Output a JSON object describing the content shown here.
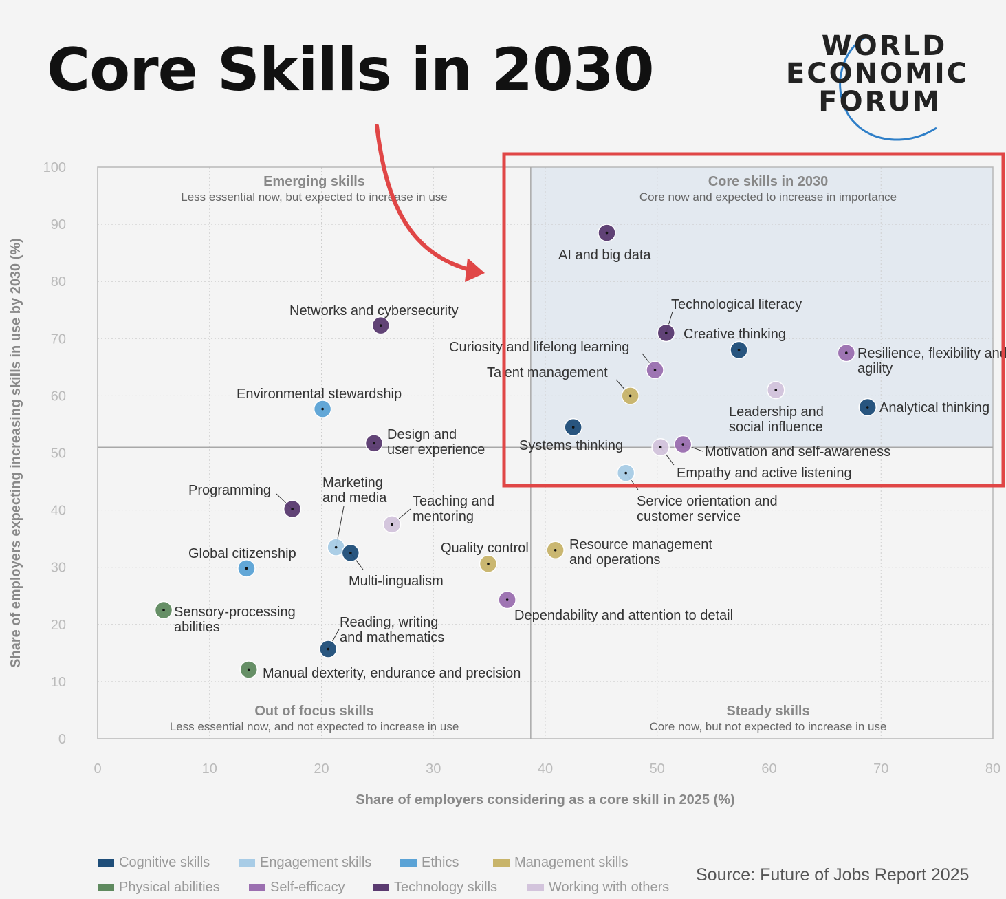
{
  "title": "Core Skills in 2030",
  "logo": {
    "lines": [
      "WORLD",
      "ECONOMIC",
      "FORUM"
    ],
    "colors": {
      "text": "#222222",
      "arc": "#2f7fc8"
    }
  },
  "source": "Source: Future of Jobs Report 2025",
  "colors": {
    "cognitive": "#1f4e79",
    "engagement": "#a8cce6",
    "ethics": "#5ba3d6",
    "management": "#c8b46a",
    "physical": "#5f8a5f",
    "self_efficacy": "#9b6fb0",
    "technology": "#5a3a70",
    "working_with_others": "#d3c4dc",
    "highlight": "#e04646",
    "core_region": "#e3e9f0"
  },
  "legend": [
    {
      "key": "cognitive",
      "label": "Cognitive skills"
    },
    {
      "key": "engagement",
      "label": "Engagement skills"
    },
    {
      "key": "ethics",
      "label": "Ethics"
    },
    {
      "key": "management",
      "label": "Management skills"
    },
    {
      "key": "physical",
      "label": "Physical abilities"
    },
    {
      "key": "self_efficacy",
      "label": "Self-efficacy"
    },
    {
      "key": "technology",
      "label": "Technology skills"
    },
    {
      "key": "working_with_others",
      "label": "Working with others"
    }
  ],
  "chart_data": {
    "type": "scatter",
    "xlabel": "Share of employers considering as a core skill in 2025 (%)",
    "ylabel": "Share of employers expecting increasing skills in use by 2030 (%)",
    "xlim": [
      0,
      80
    ],
    "ylim": [
      0,
      100
    ],
    "xticks": [
      0,
      10,
      20,
      30,
      40,
      50,
      60,
      70,
      80
    ],
    "yticks": [
      0,
      10,
      20,
      30,
      40,
      50,
      60,
      70,
      80,
      90,
      100
    ],
    "grid": true,
    "divider": {
      "x": 38.7,
      "y": 51
    },
    "quadrants": [
      {
        "id": "emerging",
        "title": "Emerging skills",
        "subtitle": "Less essential now, but expected to increase in use"
      },
      {
        "id": "core",
        "title": "Core skills in 2030",
        "subtitle": "Core now and expected to increase in importance"
      },
      {
        "id": "out-of-focus",
        "title": "Out of focus skills",
        "subtitle": "Less essential now, and not expected to increase in use"
      },
      {
        "id": "steady",
        "title": "Steady skills",
        "subtitle": "Core now, but not expected to increase in use"
      }
    ],
    "points": [
      {
        "name": "AI and big data",
        "x": 45.5,
        "y": 88.5,
        "category": "technology"
      },
      {
        "name": "Technological literacy",
        "x": 50.8,
        "y": 71,
        "category": "technology"
      },
      {
        "name": "Creative thinking",
        "x": 57.3,
        "y": 68,
        "category": "cognitive"
      },
      {
        "name": "Resilience, flexibility and agility",
        "x": 66.9,
        "y": 67.5,
        "category": "self_efficacy"
      },
      {
        "name": "Curiosity and lifelong learning",
        "x": 49.8,
        "y": 64.5,
        "category": "self_efficacy"
      },
      {
        "name": "Talent management",
        "x": 47.6,
        "y": 60,
        "category": "management"
      },
      {
        "name": "Leadership and social influence",
        "x": 60.6,
        "y": 61,
        "category": "working_with_others"
      },
      {
        "name": "Analytical thinking",
        "x": 68.8,
        "y": 58,
        "category": "cognitive"
      },
      {
        "name": "Systems thinking",
        "x": 42.5,
        "y": 54.5,
        "category": "cognitive"
      },
      {
        "name": "Motivation and self-awareness",
        "x": 52.3,
        "y": 51.5,
        "category": "self_efficacy"
      },
      {
        "name": "Empathy and active listening",
        "x": 50.3,
        "y": 51,
        "category": "working_with_others"
      },
      {
        "name": "Service orientation and customer service",
        "x": 47.2,
        "y": 46.5,
        "category": "engagement"
      },
      {
        "name": "Networks and cybersecurity",
        "x": 25.3,
        "y": 72.3,
        "category": "technology"
      },
      {
        "name": "Environmental stewardship",
        "x": 20.1,
        "y": 57.7,
        "category": "ethics"
      },
      {
        "name": "Design and user experience",
        "x": 24.7,
        "y": 51.7,
        "category": "technology"
      },
      {
        "name": "Programming",
        "x": 17.4,
        "y": 40.2,
        "category": "technology"
      },
      {
        "name": "Marketing and media",
        "x": 21.3,
        "y": 33.5,
        "category": "engagement"
      },
      {
        "name": "Multi-lingualism",
        "x": 22.6,
        "y": 32.5,
        "category": "cognitive"
      },
      {
        "name": "Teaching and mentoring",
        "x": 26.3,
        "y": 37.5,
        "category": "working_with_others"
      },
      {
        "name": "Global citizenship",
        "x": 13.3,
        "y": 29.8,
        "category": "ethics"
      },
      {
        "name": "Quality control",
        "x": 34.9,
        "y": 30.6,
        "category": "management"
      },
      {
        "name": "Resource management and operations",
        "x": 40.9,
        "y": 33,
        "category": "management"
      },
      {
        "name": "Dependability and attention to detail",
        "x": 36.6,
        "y": 24.3,
        "category": "self_efficacy"
      },
      {
        "name": "Sensory-processing abilities",
        "x": 5.9,
        "y": 22.5,
        "category": "physical"
      },
      {
        "name": "Reading, writing and mathematics",
        "x": 20.6,
        "y": 15.7,
        "category": "cognitive"
      },
      {
        "name": "Manual dexterity, endurance and precision",
        "x": 13.5,
        "y": 12.1,
        "category": "physical"
      }
    ]
  }
}
